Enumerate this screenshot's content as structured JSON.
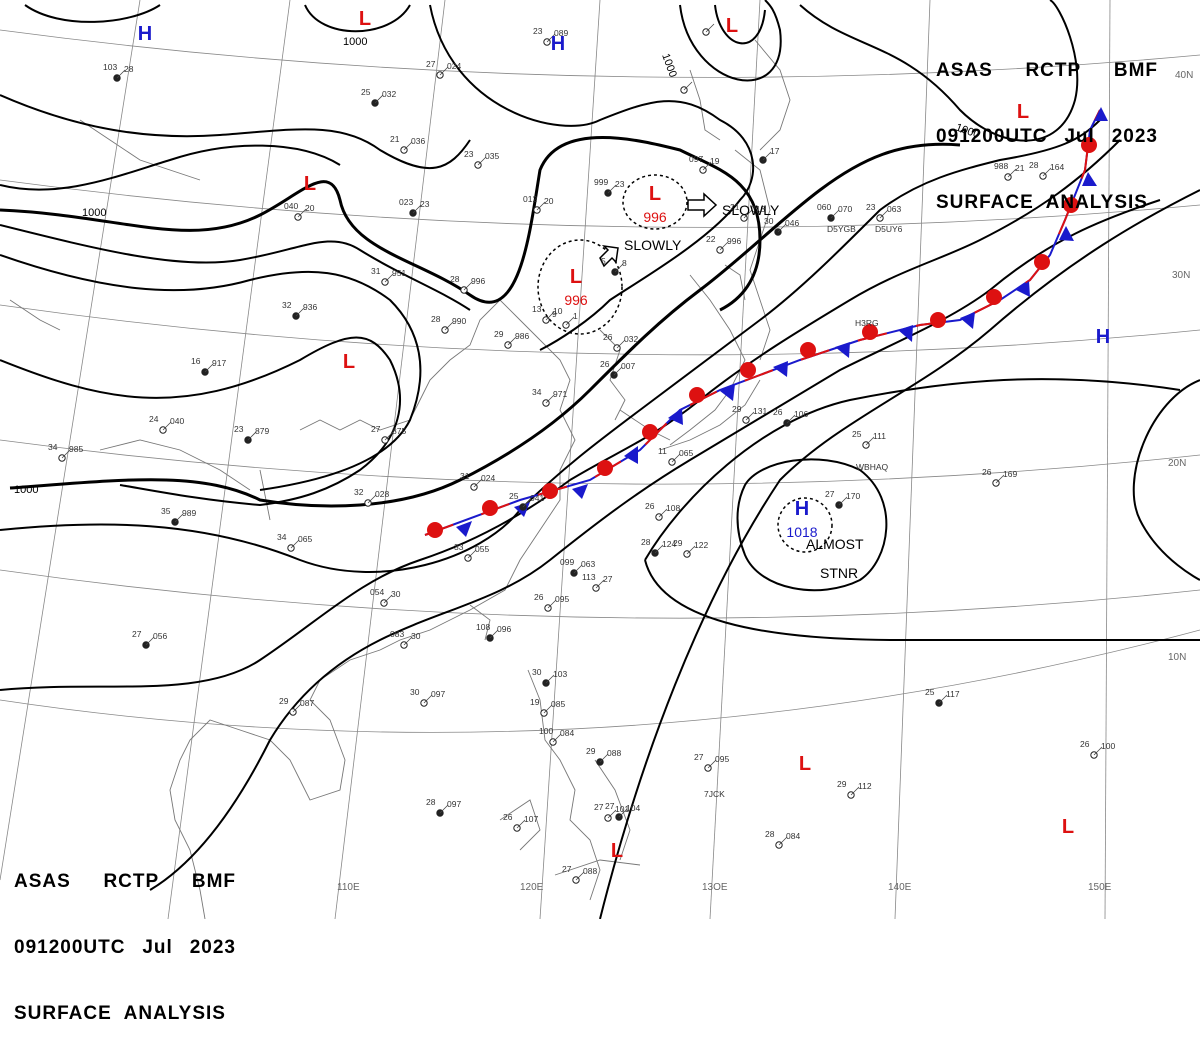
{
  "header_top_right": {
    "line1": [
      "ASAS",
      "RCTP",
      "BMF"
    ],
    "line2": [
      "091200UTC",
      "Jul",
      "2023"
    ],
    "line3": "SURFACE  ANALYSIS"
  },
  "header_bottom_left": {
    "line1": [
      "ASAS",
      "RCTP",
      "BMF"
    ],
    "line2": [
      "091200UTC",
      "Jul",
      "2023"
    ],
    "line3": "SURFACE  ANALYSIS"
  },
  "pressure_centers": [
    {
      "type": "H",
      "color": "#1a1acc",
      "value": ""
    },
    {
      "type": "L",
      "color": "#dd1111",
      "value": ""
    },
    {
      "type": "H",
      "color": "#1a1acc",
      "value": ""
    },
    {
      "type": "L",
      "color": "#dd1111",
      "value": ""
    },
    {
      "type": "L",
      "color": "#dd1111",
      "value": ""
    },
    {
      "type": "L",
      "color": "#dd1111",
      "value": "996"
    },
    {
      "type": "L",
      "color": "#dd1111",
      "value": "996"
    },
    {
      "type": "L",
      "color": "#dd1111",
      "value": ""
    },
    {
      "type": "L",
      "color": "#dd1111",
      "value": ""
    },
    {
      "type": "H",
      "color": "#1a1acc",
      "value": ""
    },
    {
      "type": "H",
      "color": "#1a1acc",
      "value": "1018"
    },
    {
      "type": "L",
      "color": "#dd1111",
      "value": ""
    },
    {
      "type": "L",
      "color": "#dd1111",
      "value": ""
    },
    {
      "type": "L",
      "color": "#dd1111",
      "value": ""
    }
  ],
  "movement_labels": [
    "SLOWLY",
    "SLOWLY",
    "ALMOST",
    "STNR"
  ],
  "isobar_labels": [
    "1000",
    "1000",
    "1000",
    "1000",
    "1000"
  ],
  "latitude_labels": [
    "40N",
    "30N",
    "20N",
    "10N"
  ],
  "longitude_labels": [
    "110E",
    "120E",
    "13OE",
    "140E",
    "150E"
  ],
  "station_values": [
    "28",
    "103",
    "089",
    "23",
    "024",
    "27",
    "032",
    "25",
    "036",
    "21",
    "035",
    "23",
    "23",
    "023",
    "20",
    "040",
    "20",
    "012",
    "23",
    "999",
    "19",
    "097",
    "951",
    "31",
    "936",
    "32",
    "990",
    "28",
    "996",
    "28",
    "917",
    "16",
    "986",
    "29",
    "971",
    "34",
    "007",
    "26",
    "032",
    "26",
    "040",
    "24",
    "879",
    "23",
    "875",
    "27",
    "985",
    "34",
    "989",
    "35",
    "024",
    "31",
    "028",
    "32",
    "041",
    "25",
    "055",
    "33",
    "065",
    "34",
    "063",
    "099",
    "27",
    "113",
    "095",
    "26",
    "096",
    "108",
    "30",
    "054",
    "30",
    "083",
    "056",
    "27",
    "087",
    "29",
    "097",
    "30",
    "103",
    "30",
    "085",
    "19",
    "084",
    "100",
    "088",
    "29",
    "095",
    "27",
    "112",
    "29",
    "097",
    "28",
    "107",
    "26",
    "101",
    "27",
    "104",
    "27",
    "088",
    "27",
    "084",
    "28",
    "117",
    "25",
    "100",
    "26",
    "164",
    "28",
    "170",
    "27",
    "169",
    "26",
    "111",
    "25",
    "106",
    "26",
    "131",
    "29",
    "122",
    "29",
    "124",
    "28",
    "108",
    "26",
    "065",
    "11",
    "070",
    "060",
    "063",
    "23",
    "018",
    "21",
    "046",
    "30",
    "21",
    "988",
    "996",
    "22",
    "8",
    "5",
    "1",
    "9",
    "10",
    "13",
    "17"
  ],
  "station_ids": [
    "D5YGB",
    "D5UY6",
    "H3RG",
    "WBHAQ",
    "7JCK"
  ]
}
